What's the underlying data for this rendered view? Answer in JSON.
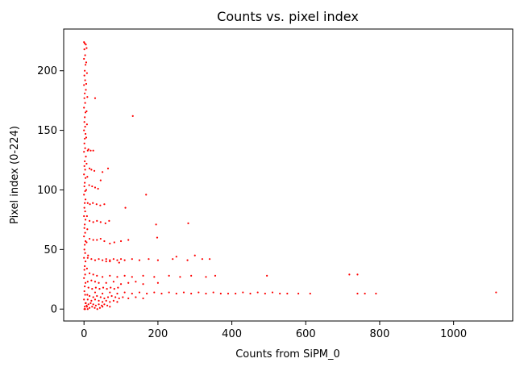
{
  "chart_data": {
    "type": "scatter",
    "title": "Counts vs. pixel index",
    "xlabel": "Counts from SiPM_0",
    "ylabel": "Pixel index (0-224)",
    "xlim": [
      -55,
      1160
    ],
    "ylim": [
      -10,
      235
    ],
    "xticks": [
      0,
      200,
      400,
      600,
      800,
      1000
    ],
    "yticks": [
      0,
      50,
      100,
      150,
      200
    ],
    "grid": false,
    "marker_color": "#ff0000",
    "series": [
      {
        "points": [
          [
            0,
            224
          ],
          [
            2,
            223
          ],
          [
            5,
            222
          ],
          [
            1,
            218
          ],
          [
            3,
            213
          ],
          [
            0,
            210
          ],
          [
            4,
            205
          ],
          [
            2,
            200
          ],
          [
            1,
            196
          ],
          [
            3,
            192
          ],
          [
            0,
            188
          ],
          [
            5,
            184
          ],
          [
            2,
            181
          ],
          [
            1,
            177
          ],
          [
            3,
            173
          ],
          [
            0,
            169
          ],
          [
            4,
            165
          ],
          [
            2,
            161
          ],
          [
            1,
            157
          ],
          [
            3,
            153
          ],
          [
            0,
            150
          ],
          [
            4,
            147
          ],
          [
            2,
            143
          ],
          [
            1,
            139
          ],
          [
            3,
            135
          ],
          [
            0,
            132
          ],
          [
            5,
            128
          ],
          [
            2,
            124
          ],
          [
            1,
            120
          ],
          [
            3,
            117
          ],
          [
            0,
            113
          ],
          [
            4,
            110
          ],
          [
            2,
            106
          ],
          [
            1,
            103
          ],
          [
            3,
            99
          ],
          [
            0,
            96
          ],
          [
            4,
            92
          ],
          [
            2,
            89
          ],
          [
            1,
            85
          ],
          [
            3,
            82
          ],
          [
            0,
            78
          ],
          [
            4,
            75
          ],
          [
            2,
            71
          ],
          [
            1,
            68
          ],
          [
            3,
            64
          ],
          [
            0,
            61
          ],
          [
            4,
            57
          ],
          [
            2,
            54
          ],
          [
            1,
            50
          ],
          [
            3,
            47
          ],
          [
            0,
            43
          ],
          [
            4,
            40
          ],
          [
            2,
            36
          ],
          [
            1,
            33
          ],
          [
            3,
            29
          ],
          [
            0,
            26
          ],
          [
            4,
            22
          ],
          [
            2,
            19
          ],
          [
            1,
            15
          ],
          [
            3,
            12
          ],
          [
            0,
            8
          ],
          [
            4,
            5
          ],
          [
            2,
            2
          ],
          [
            1,
            0
          ],
          [
            7,
            219
          ],
          [
            6,
            207
          ],
          [
            8,
            198
          ],
          [
            6,
            189
          ],
          [
            9,
            178
          ],
          [
            7,
            166
          ],
          [
            8,
            155
          ],
          [
            6,
            144
          ],
          [
            10,
            133
          ],
          [
            7,
            122
          ],
          [
            9,
            111
          ],
          [
            6,
            100
          ],
          [
            10,
            89
          ],
          [
            8,
            78
          ],
          [
            9,
            67
          ],
          [
            7,
            56
          ],
          [
            11,
            45
          ],
          [
            8,
            34
          ],
          [
            10,
            23
          ],
          [
            9,
            12
          ],
          [
            7,
            3
          ],
          [
            30,
            177
          ],
          [
            132,
            162
          ],
          [
            65,
            118
          ],
          [
            50,
            115
          ],
          [
            45,
            108
          ],
          [
            168,
            96
          ],
          [
            112,
            85
          ],
          [
            195,
            71
          ],
          [
            282,
            72
          ],
          [
            198,
            60
          ],
          [
            120,
            58
          ],
          [
            100,
            57
          ],
          [
            82,
            56
          ],
          [
            70,
            55
          ],
          [
            12,
            134
          ],
          [
            18,
            133
          ],
          [
            25,
            133
          ],
          [
            15,
            118
          ],
          [
            20,
            117
          ],
          [
            28,
            116
          ],
          [
            14,
            104
          ],
          [
            22,
            103
          ],
          [
            30,
            102
          ],
          [
            38,
            101
          ],
          [
            16,
            88
          ],
          [
            24,
            89
          ],
          [
            34,
            88
          ],
          [
            44,
            87
          ],
          [
            55,
            88
          ],
          [
            15,
            74
          ],
          [
            25,
            73
          ],
          [
            35,
            74
          ],
          [
            45,
            73
          ],
          [
            58,
            72
          ],
          [
            68,
            74
          ],
          [
            15,
            59
          ],
          [
            25,
            58
          ],
          [
            35,
            58
          ],
          [
            45,
            59
          ],
          [
            55,
            57
          ],
          [
            10,
            43
          ],
          [
            20,
            42
          ],
          [
            30,
            41
          ],
          [
            40,
            42
          ],
          [
            50,
            41
          ],
          [
            60,
            42
          ],
          [
            70,
            41
          ],
          [
            80,
            42
          ],
          [
            90,
            41
          ],
          [
            100,
            42
          ],
          [
            110,
            41
          ],
          [
            130,
            42
          ],
          [
            150,
            41
          ],
          [
            175,
            42
          ],
          [
            200,
            41
          ],
          [
            240,
            42
          ],
          [
            280,
            41
          ],
          [
            320,
            42
          ],
          [
            340,
            42
          ],
          [
            250,
            44
          ],
          [
            300,
            45
          ],
          [
            60,
            40
          ],
          [
            70,
            40
          ],
          [
            95,
            39
          ],
          [
            15,
            30
          ],
          [
            25,
            29
          ],
          [
            35,
            28
          ],
          [
            50,
            27
          ],
          [
            70,
            28
          ],
          [
            90,
            27
          ],
          [
            110,
            28
          ],
          [
            130,
            27
          ],
          [
            160,
            28
          ],
          [
            190,
            27
          ],
          [
            230,
            28
          ],
          [
            260,
            27
          ],
          [
            290,
            28
          ],
          [
            330,
            27
          ],
          [
            355,
            28
          ],
          [
            495,
            28
          ],
          [
            718,
            29
          ],
          [
            740,
            29
          ],
          [
            20,
            24
          ],
          [
            30,
            23
          ],
          [
            40,
            22
          ],
          [
            60,
            22
          ],
          [
            80,
            23
          ],
          [
            100,
            21
          ],
          [
            120,
            22
          ],
          [
            140,
            23
          ],
          [
            160,
            21
          ],
          [
            200,
            22
          ],
          [
            12,
            18
          ],
          [
            22,
            17
          ],
          [
            32,
            18
          ],
          [
            42,
            17
          ],
          [
            52,
            18
          ],
          [
            62,
            17
          ],
          [
            72,
            18
          ],
          [
            82,
            17
          ],
          [
            92,
            18
          ],
          [
            30,
            14
          ],
          [
            50,
            13
          ],
          [
            70,
            14
          ],
          [
            90,
            13
          ],
          [
            110,
            14
          ],
          [
            130,
            13
          ],
          [
            150,
            14
          ],
          [
            170,
            13
          ],
          [
            190,
            14
          ],
          [
            210,
            13
          ],
          [
            230,
            14
          ],
          [
            250,
            13
          ],
          [
            270,
            14
          ],
          [
            290,
            13
          ],
          [
            310,
            14
          ],
          [
            330,
            13
          ],
          [
            350,
            14
          ],
          [
            370,
            13
          ],
          [
            390,
            13
          ],
          [
            410,
            13
          ],
          [
            430,
            14
          ],
          [
            450,
            13
          ],
          [
            470,
            14
          ],
          [
            490,
            13
          ],
          [
            510,
            14
          ],
          [
            530,
            13
          ],
          [
            550,
            13
          ],
          [
            580,
            13
          ],
          [
            612,
            13
          ],
          [
            740,
            13
          ],
          [
            760,
            13
          ],
          [
            790,
            13
          ],
          [
            1115,
            14
          ],
          [
            15,
            11
          ],
          [
            25,
            10
          ],
          [
            35,
            11
          ],
          [
            45,
            10
          ],
          [
            55,
            9
          ],
          [
            65,
            10
          ],
          [
            75,
            11
          ],
          [
            85,
            10
          ],
          [
            95,
            9
          ],
          [
            105,
            10
          ],
          [
            120,
            9
          ],
          [
            140,
            10
          ],
          [
            160,
            9
          ],
          [
            10,
            8
          ],
          [
            20,
            7
          ],
          [
            30,
            8
          ],
          [
            40,
            7
          ],
          [
            50,
            6
          ],
          [
            60,
            7
          ],
          [
            70,
            6
          ],
          [
            80,
            7
          ],
          [
            90,
            6
          ],
          [
            5,
            5
          ],
          [
            12,
            4
          ],
          [
            18,
            5
          ],
          [
            25,
            4
          ],
          [
            32,
            3
          ],
          [
            40,
            4
          ],
          [
            48,
            3
          ],
          [
            55,
            4
          ],
          [
            63,
            3
          ],
          [
            70,
            2
          ],
          [
            8,
            2
          ],
          [
            15,
            1
          ],
          [
            22,
            2
          ],
          [
            29,
            1
          ],
          [
            36,
            0
          ],
          [
            43,
            1
          ],
          [
            50,
            2
          ],
          [
            3,
            0
          ],
          [
            10,
            0
          ]
        ]
      }
    ]
  }
}
